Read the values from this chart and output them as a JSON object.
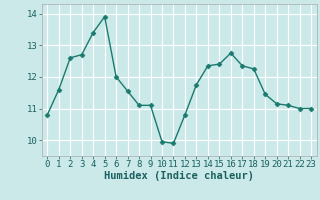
{
  "x": [
    0,
    1,
    2,
    3,
    4,
    5,
    6,
    7,
    8,
    9,
    10,
    11,
    12,
    13,
    14,
    15,
    16,
    17,
    18,
    19,
    20,
    21,
    22,
    23
  ],
  "y": [
    10.8,
    11.6,
    12.6,
    12.7,
    13.4,
    13.9,
    12.0,
    11.55,
    11.1,
    11.1,
    9.95,
    9.9,
    10.8,
    11.75,
    12.35,
    12.4,
    12.75,
    12.35,
    12.25,
    11.45,
    11.15,
    11.1,
    11.0,
    11.0
  ],
  "line_color": "#1a7a6e",
  "marker": "D",
  "marker_size": 2.5,
  "bg_color": "#cce9e9",
  "grid_color": "#ffffff",
  "xlabel": "Humidex (Indice chaleur)",
  "ylim": [
    9.5,
    14.3
  ],
  "xlim": [
    -0.5,
    23.5
  ],
  "yticks": [
    10,
    11,
    12,
    13,
    14
  ],
  "xticks": [
    0,
    1,
    2,
    3,
    4,
    5,
    6,
    7,
    8,
    9,
    10,
    11,
    12,
    13,
    14,
    15,
    16,
    17,
    18,
    19,
    20,
    21,
    22,
    23
  ],
  "xlabel_fontsize": 7.5,
  "tick_fontsize": 6.5,
  "linewidth": 1.0
}
